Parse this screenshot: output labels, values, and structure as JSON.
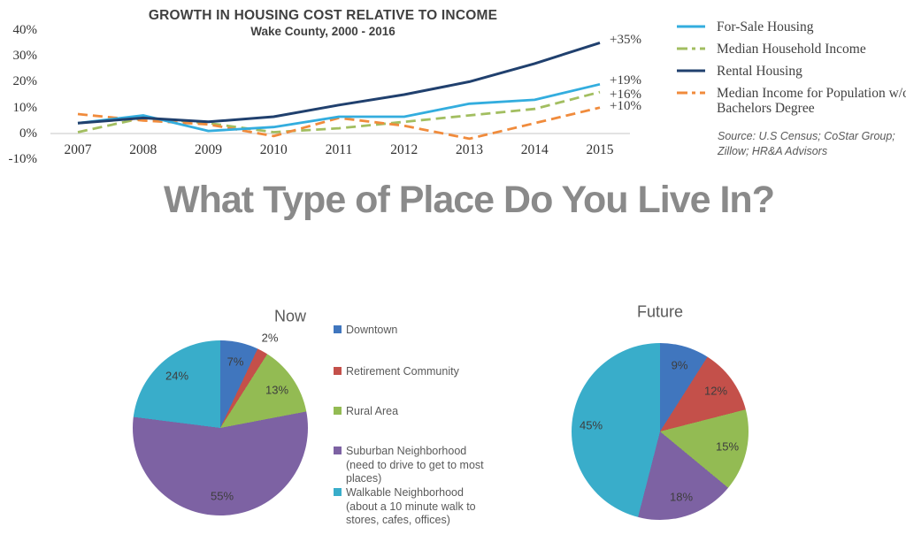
{
  "main_title": "What Type of Place Do You Live In?",
  "chart_data": [
    {
      "type": "line",
      "title": "GROWTH IN HOUSING COST RELATIVE TO INCOME",
      "subtitle": "Wake County, 2000 - 2016",
      "source": "Source: U.S Census;  CoStar Group; Zillow; HR&A Advisors",
      "x": [
        2007,
        2008,
        2009,
        2010,
        2011,
        2012,
        2013,
        2014,
        2015
      ],
      "ylim": [
        -10,
        40
      ],
      "y_ticks": [
        40,
        30,
        20,
        10,
        0,
        -10
      ],
      "grid": false,
      "legend_position": "right",
      "series": [
        {
          "name": "For-Sale Housing",
          "color": "#33ADDE",
          "style": "solid",
          "values": [
            4,
            7,
            1,
            2.5,
            6.5,
            6.5,
            11.5,
            13,
            19
          ],
          "end_label": "+19%"
        },
        {
          "name": "Median Household Income",
          "color": "#A2BE60",
          "style": "dashed",
          "values": [
            0.5,
            6,
            4,
            0.5,
            2,
            4.5,
            7,
            9.5,
            16
          ],
          "end_label": "+16%"
        },
        {
          "name": "Rental Housing",
          "color": "#20406E",
          "style": "solid",
          "values": [
            4,
            6,
            4.5,
            6.5,
            11,
            15,
            20,
            27,
            35
          ],
          "end_label": "+35%"
        },
        {
          "name": "Median Income for Population w/o Bachelors Degree",
          "color": "#F08B3C",
          "style": "dashed",
          "values": [
            7.5,
            5,
            3.5,
            -1,
            6,
            3,
            -2,
            4,
            10
          ],
          "end_label": "+10%"
        }
      ]
    },
    {
      "type": "pie",
      "title": "Now",
      "categories": [
        "Downtown",
        "Retirement Community",
        "Rural Area",
        "Suburban Neighborhood (need to drive to get to most places)",
        "Walkable Neighborhood (about a 10 minute walk to stores, cafes, offices)"
      ],
      "values": [
        7,
        2,
        13,
        55,
        24
      ],
      "labels": [
        "7%",
        "2%",
        "13%",
        "55%",
        "24%"
      ],
      "colors": [
        "#4076BE",
        "#C4504A",
        "#93BB53",
        "#7D62A3",
        "#39ADCA"
      ],
      "legend_position": "right"
    },
    {
      "type": "pie",
      "title": "Future",
      "categories": [
        "Downtown",
        "Retirement Community",
        "Rural Area",
        "Suburban Neighborhood (need to drive to get to most places)",
        "Walkable Neighborhood (about a 10 minute walk to stores, cafes, offices)"
      ],
      "values": [
        9,
        12,
        15,
        18,
        45
      ],
      "labels": [
        "9%",
        "12%",
        "15%",
        "18%",
        "45%"
      ],
      "colors": [
        "#4076BE",
        "#C4504A",
        "#93BB53",
        "#7D62A3",
        "#39ADCA"
      ],
      "legend_position": "none"
    }
  ]
}
